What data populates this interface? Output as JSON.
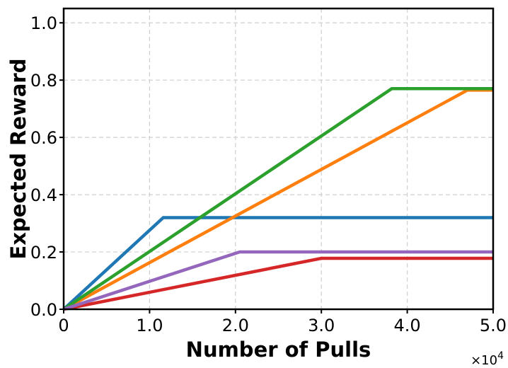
{
  "chart_data": {
    "type": "line",
    "title": "",
    "xlabel": "Number of Pulls",
    "ylabel": "Expected Reward",
    "xlim": [
      0,
      50000
    ],
    "ylim": [
      0,
      1.05
    ],
    "x_ticks": [
      0,
      10000,
      20000,
      30000,
      40000,
      50000
    ],
    "x_tick_labels": [
      "0",
      "1.0",
      "2.0",
      "3.0",
      "4.0",
      "5.0"
    ],
    "x_exponent_label": "×10",
    "x_exponent_power": "4",
    "y_ticks": [
      0,
      0.2,
      0.4,
      0.6,
      0.8,
      1.0
    ],
    "y_tick_labels": [
      "0.0",
      "0.2",
      "0.4",
      "0.6",
      "0.8",
      "1.0"
    ],
    "grid": true,
    "legend": "none",
    "series": [
      {
        "color": "#1f77b4",
        "x": [
          0,
          11600,
          50000
        ],
        "y": [
          0,
          0.32,
          0.32
        ]
      },
      {
        "color": "#ff7f0e",
        "x": [
          0,
          47000,
          50000
        ],
        "y": [
          0,
          0.765,
          0.765
        ]
      },
      {
        "color": "#2ca02c",
        "x": [
          0,
          38200,
          50000
        ],
        "y": [
          0,
          0.77,
          0.77
        ]
      },
      {
        "color": "#d62728",
        "x": [
          0,
          30000,
          50000
        ],
        "y": [
          0,
          0.178,
          0.178
        ]
      },
      {
        "color": "#9467bd",
        "x": [
          0,
          20500,
          50000
        ],
        "y": [
          0,
          0.2,
          0.2
        ]
      }
    ]
  }
}
